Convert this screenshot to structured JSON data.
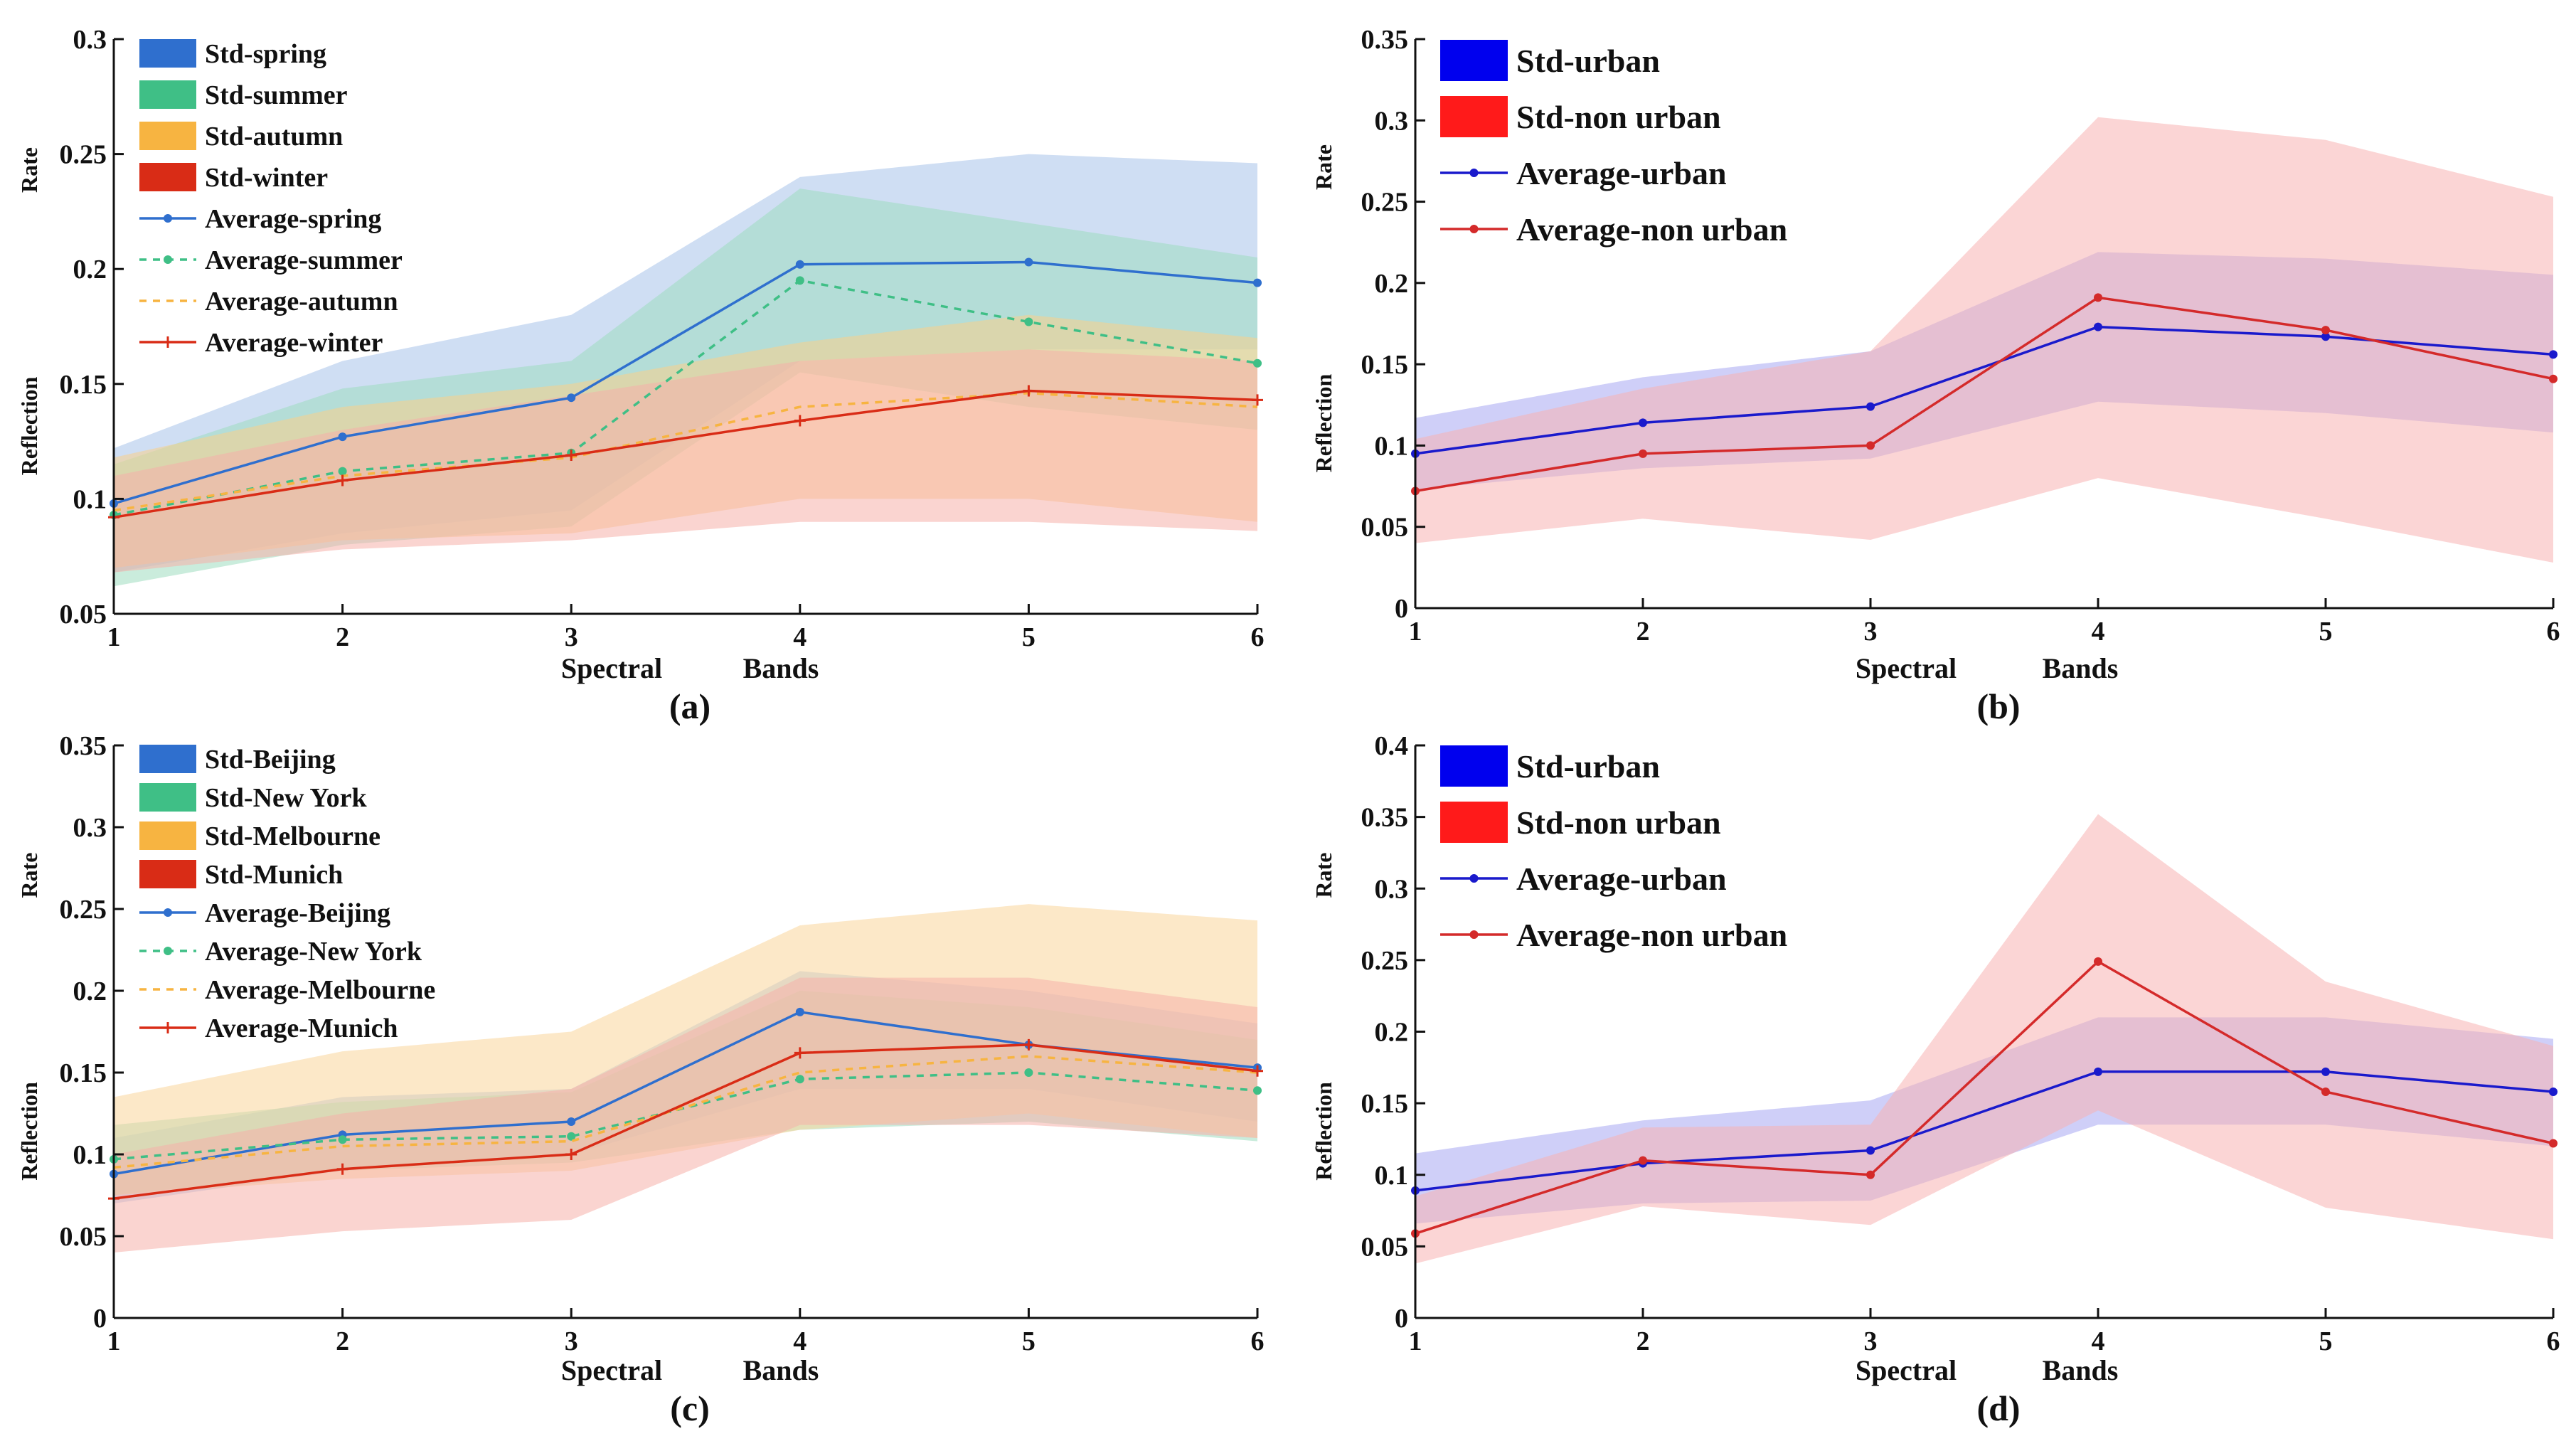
{
  "chart_data": [
    {
      "type": "line",
      "caption": "(a)",
      "xlabel_parts": [
        "Spectral",
        "Bands"
      ],
      "ylabel_parts": [
        "Reflection",
        "Rate"
      ],
      "x": [
        1,
        2,
        3,
        4,
        5,
        6
      ],
      "x_ticks": [
        "1",
        "2",
        "3",
        "4",
        "5",
        "6"
      ],
      "ylim": [
        0.05,
        0.3
      ],
      "y_ticks": [
        "0.05",
        "0.1",
        "0.15",
        "0.2",
        "0.25",
        "0.3"
      ],
      "legend": "top-left",
      "std_series": [
        {
          "name": "Std-spring",
          "color": "#2f6fce",
          "fill": "#a7c3ea",
          "lower": [
            0.068,
            0.085,
            0.095,
            0.16,
            0.165,
            0.165
          ],
          "upper": [
            0.122,
            0.16,
            0.18,
            0.24,
            0.25,
            0.246
          ]
        },
        {
          "name": "Std-summer",
          "color": "#3fbf86",
          "fill": "#9fdcbf",
          "lower": [
            0.062,
            0.08,
            0.088,
            0.155,
            0.14,
            0.13
          ],
          "upper": [
            0.115,
            0.148,
            0.16,
            0.235,
            0.22,
            0.205
          ]
        },
        {
          "name": "Std-autumn",
          "color": "#f7b441",
          "fill": "#f9cf8a",
          "lower": [
            0.07,
            0.082,
            0.085,
            0.1,
            0.1,
            0.09
          ],
          "upper": [
            0.118,
            0.14,
            0.15,
            0.168,
            0.18,
            0.17
          ]
        },
        {
          "name": "Std-winter",
          "color": "#d92c16",
          "fill": "#f5b0aa",
          "lower": [
            0.068,
            0.078,
            0.082,
            0.09,
            0.09,
            0.086
          ],
          "upper": [
            0.11,
            0.13,
            0.145,
            0.16,
            0.165,
            0.16
          ]
        }
      ],
      "avg_series": [
        {
          "name": "Average-spring",
          "color": "#2f6fce",
          "dash": "",
          "marker": "dot",
          "values": [
            0.098,
            0.127,
            0.144,
            0.202,
            0.203,
            0.194
          ]
        },
        {
          "name": "Average-summer",
          "color": "#3fbf86",
          "dash": "10 9",
          "marker": "dot",
          "values": [
            0.093,
            0.112,
            0.12,
            0.195,
            0.177,
            0.159
          ]
        },
        {
          "name": "Average-autumn",
          "color": "#f7b441",
          "dash": "10 9",
          "marker": "none",
          "values": [
            0.095,
            0.11,
            0.118,
            0.14,
            0.146,
            0.14
          ]
        },
        {
          "name": "Average-winter",
          "color": "#d92c16",
          "dash": "",
          "marker": "plus",
          "values": [
            0.092,
            0.108,
            0.119,
            0.134,
            0.147,
            0.143
          ]
        }
      ]
    },
    {
      "type": "line",
      "caption": "(b)",
      "xlabel_parts": [
        "Spectral",
        "Bands"
      ],
      "ylabel_parts": [
        "Reflection",
        "Rate"
      ],
      "x": [
        1,
        2,
        3,
        4,
        5,
        6
      ],
      "x_ticks": [
        "1",
        "2",
        "3",
        "4",
        "5",
        "6"
      ],
      "ylim": [
        0,
        0.35
      ],
      "y_ticks": [
        "0",
        "0.05",
        "0.1",
        "0.15",
        "0.2",
        "0.25",
        "0.3",
        "0.35"
      ],
      "legend": "top-left",
      "std_series": [
        {
          "name": "Std-urban",
          "color": "#0000ee",
          "fill": "#a7a8f2",
          "lower": [
            0.073,
            0.086,
            0.092,
            0.127,
            0.12,
            0.108
          ],
          "upper": [
            0.117,
            0.142,
            0.158,
            0.219,
            0.215,
            0.205
          ]
        },
        {
          "name": "Std-non urban",
          "color": "#ff1a1a",
          "fill": "#f7b3b3",
          "lower": [
            0.04,
            0.055,
            0.042,
            0.08,
            0.055,
            0.028
          ],
          "upper": [
            0.104,
            0.135,
            0.158,
            0.302,
            0.288,
            0.253
          ]
        }
      ],
      "avg_series": [
        {
          "name": "Average-urban",
          "color": "#1a1acc",
          "dash": "",
          "marker": "dot",
          "values": [
            0.095,
            0.114,
            0.124,
            0.173,
            0.167,
            0.156
          ]
        },
        {
          "name": "Average-non urban",
          "color": "#d42a2a",
          "dash": "",
          "marker": "dot",
          "values": [
            0.072,
            0.095,
            0.1,
            0.191,
            0.171,
            0.141
          ]
        }
      ]
    },
    {
      "type": "line",
      "caption": "(c)",
      "xlabel_parts": [
        "Spectral",
        "Bands"
      ],
      "ylabel_parts": [
        "Reflection",
        "Rate"
      ],
      "x": [
        1,
        2,
        3,
        4,
        5,
        6
      ],
      "x_ticks": [
        "1",
        "2",
        "3",
        "4",
        "5",
        "6"
      ],
      "ylim": [
        0,
        0.35
      ],
      "y_ticks": [
        "0",
        "0.05",
        "0.1",
        "0.15",
        "0.2",
        "0.25",
        "0.3",
        "0.35"
      ],
      "legend": "top-left",
      "std_series": [
        {
          "name": "Std-Beijing",
          "color": "#2f6fce",
          "fill": "#a7c3ea",
          "lower": [
            0.07,
            0.09,
            0.1,
            0.14,
            0.14,
            0.12
          ],
          "upper": [
            0.11,
            0.135,
            0.14,
            0.212,
            0.2,
            0.18
          ]
        },
        {
          "name": "Std-New York",
          "color": "#3fbf86",
          "fill": "#9fdcbf",
          "lower": [
            0.075,
            0.09,
            0.095,
            0.115,
            0.12,
            0.108
          ],
          "upper": [
            0.118,
            0.132,
            0.138,
            0.2,
            0.19,
            0.17
          ]
        },
        {
          "name": "Std-Melbourne",
          "color": "#f7b441",
          "fill": "#f9d59a",
          "lower": [
            0.075,
            0.085,
            0.09,
            0.115,
            0.125,
            0.11
          ],
          "upper": [
            0.135,
            0.163,
            0.175,
            0.24,
            0.253,
            0.243
          ]
        },
        {
          "name": "Std-Munich",
          "color": "#d92c16",
          "fill": "#f5b0aa",
          "lower": [
            0.04,
            0.053,
            0.06,
            0.118,
            0.118,
            0.11
          ],
          "upper": [
            0.1,
            0.125,
            0.14,
            0.208,
            0.208,
            0.19
          ]
        }
      ],
      "avg_series": [
        {
          "name": "Average-Beijing",
          "color": "#2f6fce",
          "dash": "",
          "marker": "dot",
          "values": [
            0.088,
            0.112,
            0.12,
            0.187,
            0.167,
            0.153
          ]
        },
        {
          "name": "Average-New York",
          "color": "#3fbf86",
          "dash": "10 9",
          "marker": "dot",
          "values": [
            0.097,
            0.109,
            0.111,
            0.146,
            0.15,
            0.139
          ]
        },
        {
          "name": "Average-Melbourne",
          "color": "#f7b441",
          "dash": "10 9",
          "marker": "none",
          "values": [
            0.092,
            0.105,
            0.108,
            0.15,
            0.16,
            0.15
          ]
        },
        {
          "name": "Average-Munich",
          "color": "#d92c16",
          "dash": "",
          "marker": "plus",
          "values": [
            0.073,
            0.091,
            0.1,
            0.162,
            0.167,
            0.151
          ]
        }
      ]
    },
    {
      "type": "line",
      "caption": "(d)",
      "xlabel_parts": [
        "Spectral",
        "Bands"
      ],
      "ylabel_parts": [
        "Reflection",
        "Rate"
      ],
      "x": [
        1,
        2,
        3,
        4,
        5,
        6
      ],
      "x_ticks": [
        "1",
        "2",
        "3",
        "4",
        "5",
        "6"
      ],
      "ylim": [
        0,
        0.4
      ],
      "y_ticks": [
        "0",
        "0.05",
        "0.1",
        "0.15",
        "0.2",
        "0.25",
        "0.3",
        "0.35",
        "0.4"
      ],
      "legend": "top-left",
      "std_series": [
        {
          "name": "Std-urban",
          "color": "#0000ee",
          "fill": "#a7a8f2",
          "lower": [
            0.066,
            0.08,
            0.082,
            0.135,
            0.135,
            0.12
          ],
          "upper": [
            0.115,
            0.138,
            0.152,
            0.21,
            0.21,
            0.195
          ]
        },
        {
          "name": "Std-non urban",
          "color": "#ff1a1a",
          "fill": "#f7b3b3",
          "lower": [
            0.038,
            0.078,
            0.065,
            0.145,
            0.077,
            0.055
          ],
          "upper": [
            0.085,
            0.133,
            0.135,
            0.352,
            0.235,
            0.19
          ]
        }
      ],
      "avg_series": [
        {
          "name": "Average-urban",
          "color": "#1a1acc",
          "dash": "",
          "marker": "dot",
          "values": [
            0.089,
            0.108,
            0.117,
            0.172,
            0.172,
            0.158
          ]
        },
        {
          "name": "Average-non urban",
          "color": "#d42a2a",
          "dash": "",
          "marker": "dot",
          "values": [
            0.059,
            0.11,
            0.1,
            0.249,
            0.158,
            0.122
          ]
        }
      ]
    }
  ]
}
